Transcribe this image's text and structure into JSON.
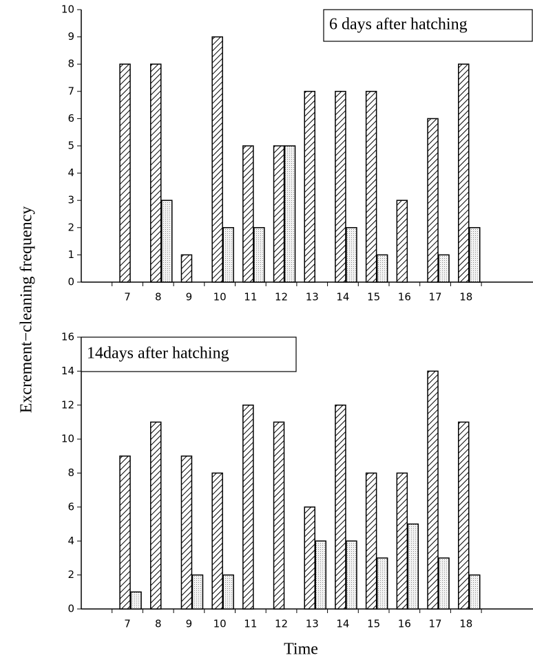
{
  "ylabel": "Excrement−cleaning frequency",
  "xlabel": "Time",
  "chart_data": [
    {
      "type": "bar",
      "annotation": "6 days after hatching",
      "categories": [
        "7",
        "8",
        "9",
        "10",
        "11",
        "12",
        "13",
        "14",
        "15",
        "16",
        "17",
        "18"
      ],
      "series": [
        {
          "color": "#000000",
          "fill": "hatch",
          "values": [
            8,
            8,
            1,
            9,
            5,
            5,
            7,
            7,
            7,
            3,
            6,
            8
          ]
        },
        {
          "color": "#000000",
          "fill": "dots",
          "values": [
            0,
            3,
            0,
            2,
            2,
            5,
            0,
            2,
            1,
            0,
            1,
            2
          ]
        }
      ],
      "ylim": [
        0,
        10
      ],
      "yticks": [
        0,
        1,
        2,
        3,
        4,
        5,
        6,
        7,
        8,
        9,
        10
      ],
      "grid": false
    },
    {
      "type": "bar",
      "annotation": "14days after hatching",
      "categories": [
        "7",
        "8",
        "9",
        "10",
        "11",
        "12",
        "13",
        "14",
        "15",
        "16",
        "17",
        "18"
      ],
      "series": [
        {
          "color": "#000000",
          "fill": "hatch",
          "values": [
            9,
            11,
            9,
            8,
            12,
            11,
            6,
            12,
            8,
            8,
            14,
            11
          ]
        },
        {
          "color": "#000000",
          "fill": "dots",
          "values": [
            1,
            0,
            2,
            2,
            0,
            0,
            4,
            4,
            3,
            5,
            3,
            2
          ]
        }
      ],
      "ylim": [
        0,
        16
      ],
      "yticks": [
        0,
        2,
        4,
        6,
        8,
        10,
        12,
        14,
        16
      ],
      "grid": false
    }
  ]
}
